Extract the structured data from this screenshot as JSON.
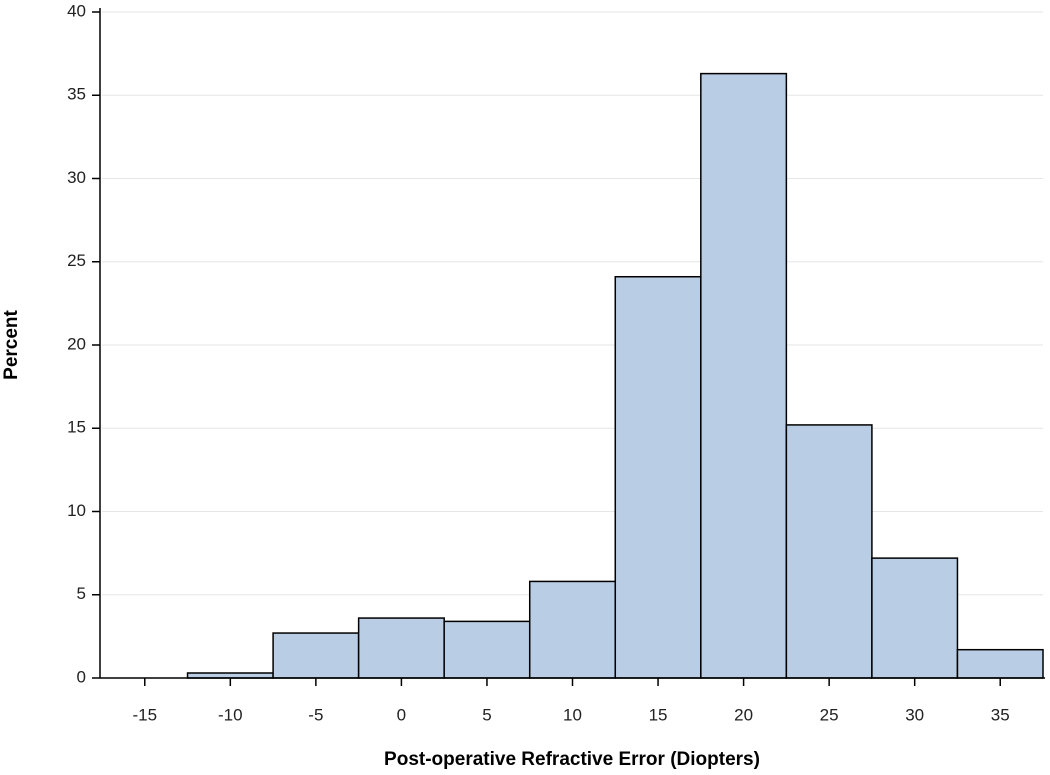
{
  "chart_data": {
    "type": "histogram",
    "xlabel": "Post-operative Refractive Error (Diopters)",
    "ylabel": "Percent",
    "bins": [
      -17.5,
      -12.5,
      -7.5,
      -2.5,
      2.5,
      7.5,
      12.5,
      17.5,
      22.5,
      27.5,
      32.5,
      37.5
    ],
    "values": [
      0,
      0.3,
      2.7,
      3.6,
      3.4,
      5.8,
      24.1,
      36.3,
      15.2,
      7.2,
      1.7
    ],
    "color": "#b9cde5",
    "xlim": [
      -17.5,
      37.5
    ],
    "xticks": [
      -15,
      -10,
      -5,
      0,
      5,
      10,
      15,
      20,
      25,
      30,
      35
    ],
    "ylim": [
      0,
      40
    ],
    "yticks": [
      0,
      5,
      10,
      15,
      20,
      25,
      30,
      35,
      40
    ],
    "grid": true
  }
}
